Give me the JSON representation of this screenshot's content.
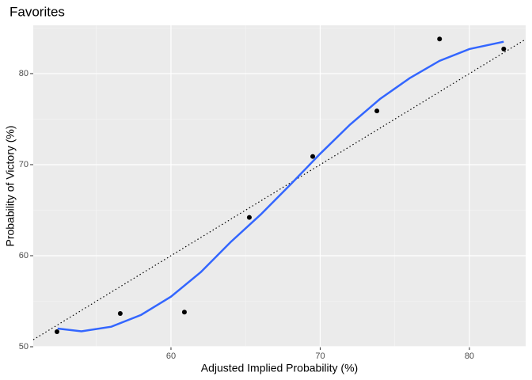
{
  "chart_data": {
    "type": "scatter",
    "title": "Favorites",
    "x_label": "Adjusted Implied Probability (%)",
    "y_label": "Probability of Victory (%)",
    "xlim": [
      50.77,
      83.77
    ],
    "ylim": [
      50,
      85.3
    ],
    "xticks": [
      60,
      70,
      80
    ],
    "yticks": [
      50,
      60,
      70,
      80
    ],
    "grid": true,
    "identity_line": true,
    "series": [
      {
        "kind": "points",
        "color": "#000000",
        "x": [
          52.36,
          56.6,
          60.9,
          65.25,
          69.5,
          73.8,
          78.0,
          82.3
        ],
        "values": [
          51.65,
          53.65,
          53.8,
          64.2,
          70.9,
          75.9,
          83.8,
          82.7
        ]
      },
      {
        "kind": "smooth",
        "color": "#3366ff",
        "x": [
          52.4,
          54,
          56,
          58,
          60,
          62,
          64,
          66,
          68,
          70,
          72,
          74,
          76,
          78,
          80,
          82.3
        ],
        "values": [
          52,
          51.7,
          52.2,
          53.5,
          55.5,
          58.2,
          61.5,
          64.5,
          67.8,
          71.2,
          74.4,
          77.2,
          79.5,
          81.4,
          82.7,
          83.5
        ]
      }
    ]
  }
}
